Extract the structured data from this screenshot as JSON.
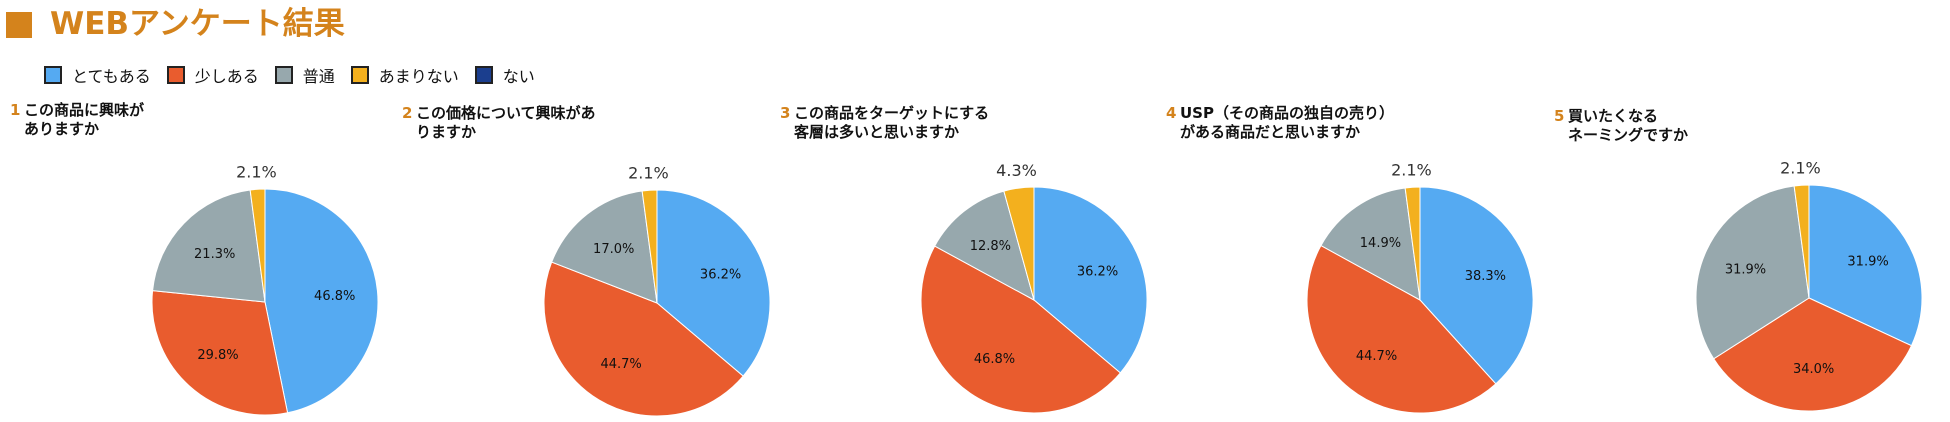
{
  "header": {
    "title": "WEBアンケート結果"
  },
  "colors": {
    "accent": "#d4831c",
    "very": "#55aaf2",
    "little": "#e95c2e",
    "normal": "#97a8ad",
    "notmuch": "#f3b01e",
    "none": "#1b3e8e"
  },
  "legend": [
    {
      "label": "とてもある",
      "color": "#55aaf2"
    },
    {
      "label": "少しある",
      "color": "#e95c2e"
    },
    {
      "label": "普通",
      "color": "#97a8ad"
    },
    {
      "label": "あまりない",
      "color": "#f3b01e"
    },
    {
      "label": "ない",
      "color": "#1b3e8e"
    }
  ],
  "chart_data": [
    {
      "type": "pie",
      "number": "1",
      "title": "この商品に興味が\nありますか",
      "slices": [
        {
          "label": "とてもある",
          "value": 46.8,
          "text": "46.8%"
        },
        {
          "label": "少しある",
          "value": 29.8,
          "text": "29.8%"
        },
        {
          "label": "普通",
          "value": 21.3,
          "text": "21.3%"
        },
        {
          "label": "あまりない",
          "value": 2.1,
          "text": "2.1%"
        }
      ]
    },
    {
      "type": "pie",
      "number": "2",
      "title": "この価格について興味があ\nりますか",
      "slices": [
        {
          "label": "とてもある",
          "value": 36.2,
          "text": "36.2%"
        },
        {
          "label": "少しある",
          "value": 44.7,
          "text": "44.7%"
        },
        {
          "label": "普通",
          "value": 17.0,
          "text": "17.0%"
        },
        {
          "label": "あまりない",
          "value": 2.1,
          "text": "2.1%"
        }
      ]
    },
    {
      "type": "pie",
      "number": "3",
      "title": "この商品をターゲットにする\n客層は多いと思いますか",
      "slices": [
        {
          "label": "とてもある",
          "value": 36.2,
          "text": "36.2%"
        },
        {
          "label": "少しある",
          "value": 46.8,
          "text": "46.8%"
        },
        {
          "label": "普通",
          "value": 12.8,
          "text": "12.8%"
        },
        {
          "label": "あまりない",
          "value": 4.3,
          "text": "4.3%"
        }
      ]
    },
    {
      "type": "pie",
      "number": "4",
      "title": "USP（その商品の独自の売り）\nがある商品だと思いますか",
      "slices": [
        {
          "label": "とてもある",
          "value": 38.3,
          "text": "38.3%"
        },
        {
          "label": "少しある",
          "value": 44.7,
          "text": "44.7%"
        },
        {
          "label": "普通",
          "value": 14.9,
          "text": "14.9%"
        },
        {
          "label": "あまりない",
          "value": 2.1,
          "text": "2.1%"
        }
      ]
    },
    {
      "type": "pie",
      "number": "5",
      "title": "買いたくなる\nネーミングですか",
      "slices": [
        {
          "label": "とてもある",
          "value": 31.9,
          "text": "31.9%"
        },
        {
          "label": "少しある",
          "value": 34.0,
          "text": "34.0%"
        },
        {
          "label": "普通",
          "value": 31.9,
          "text": "31.9%"
        },
        {
          "label": "あまりない",
          "value": 2.1,
          "text": "2.1%"
        }
      ]
    }
  ]
}
